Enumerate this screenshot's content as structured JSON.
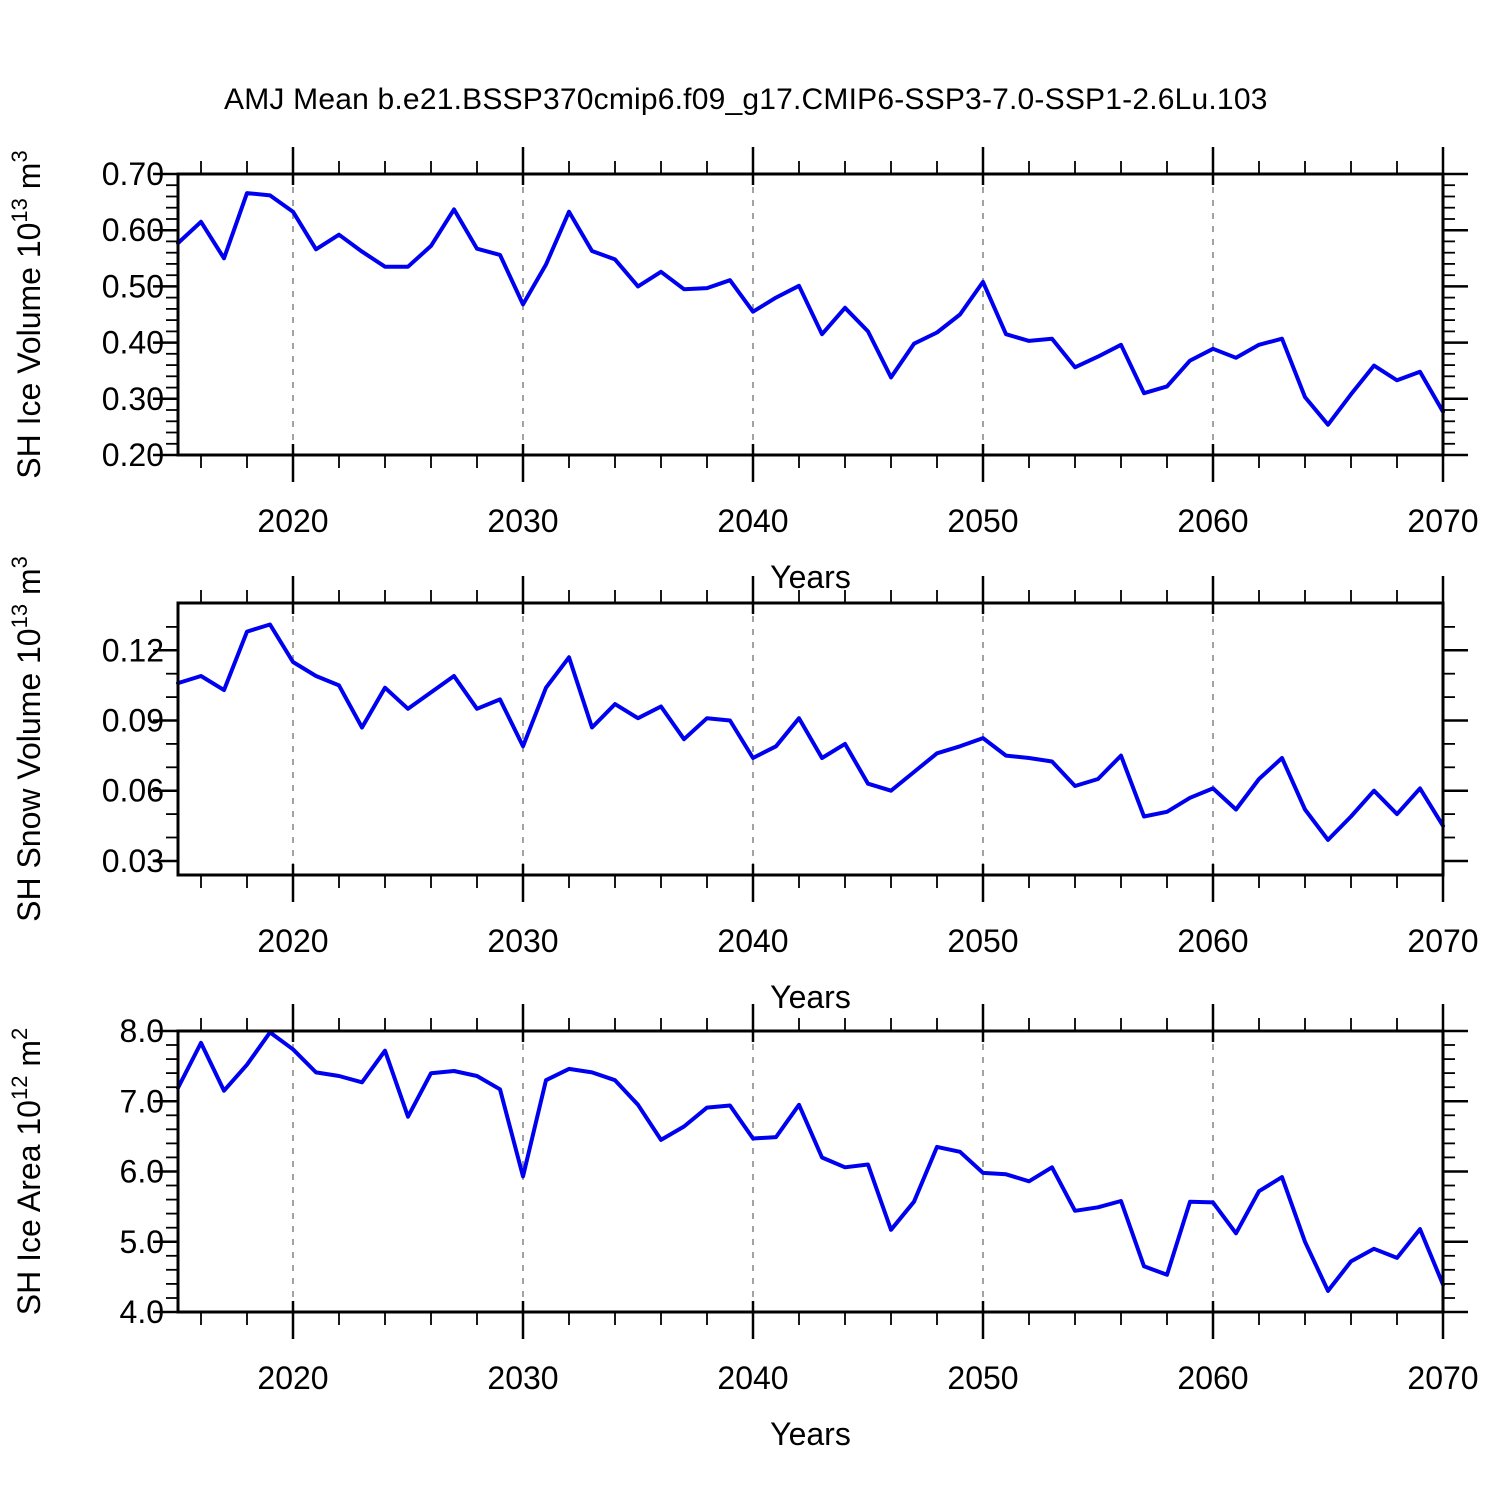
{
  "title": "AMJ Mean b.e21.BSSP370cmip6.f09_g17.CMIP6-SSP3-7.0-SSP1-2.6Lu.103",
  "colors": {
    "line": "#0000f0",
    "grid": "#999999",
    "axis": "#000000",
    "text": "#000000",
    "background": "#ffffff"
  },
  "x_axis": {
    "label": "Years",
    "range": [
      2015,
      2070
    ],
    "ticks": [
      2020,
      2030,
      2040,
      2050,
      2060,
      2070
    ],
    "tick_labels": [
      "2020",
      "2030",
      "2040",
      "2050",
      "2060",
      "2070"
    ],
    "gridlines": [
      2020,
      2030,
      2040,
      2050,
      2060
    ],
    "minor_step": 2
  },
  "years": [
    2015,
    2016,
    2017,
    2018,
    2019,
    2020,
    2021,
    2022,
    2023,
    2024,
    2025,
    2026,
    2027,
    2028,
    2029,
    2030,
    2031,
    2032,
    2033,
    2034,
    2035,
    2036,
    2037,
    2038,
    2039,
    2040,
    2041,
    2042,
    2043,
    2044,
    2045,
    2046,
    2047,
    2048,
    2049,
    2050,
    2051,
    2052,
    2053,
    2054,
    2055,
    2056,
    2057,
    2058,
    2059,
    2060,
    2061,
    2062,
    2063,
    2064,
    2065,
    2066,
    2067,
    2068,
    2069,
    2070
  ],
  "chart_data": [
    {
      "type": "line",
      "name": "sh-ice-volume",
      "ylabel": "SH Ice Volume 10¹³ m³",
      "ylabel_parts": [
        {
          "t": "SH Ice Volume 10"
        },
        {
          "t": "13",
          "sup": true
        },
        {
          "t": " m"
        },
        {
          "t": "3",
          "sup": true
        }
      ],
      "ylim": [
        0.2,
        0.7
      ],
      "yticks": [
        0.7,
        0.6,
        0.5,
        0.4,
        0.3,
        0.2
      ],
      "ytick_labels": [
        "0.70",
        "0.60",
        "0.50",
        "0.40",
        "0.30",
        "0.20"
      ],
      "yminor_step": 0.02,
      "values": [
        0.577,
        0.615,
        0.55,
        0.666,
        0.662,
        0.633,
        0.566,
        0.592,
        0.562,
        0.535,
        0.535,
        0.572,
        0.637,
        0.567,
        0.556,
        0.468,
        0.539,
        0.633,
        0.563,
        0.548,
        0.5,
        0.526,
        0.495,
        0.497,
        0.511,
        0.455,
        0.48,
        0.501,
        0.415,
        0.462,
        0.42,
        0.338,
        0.398,
        0.418,
        0.45,
        0.508,
        0.415,
        0.403,
        0.407,
        0.356,
        0.375,
        0.396,
        0.31,
        0.322,
        0.368,
        0.389,
        0.373,
        0.396,
        0.407,
        0.303,
        0.254,
        0.308,
        0.359,
        0.333,
        0.348,
        0.277
      ]
    },
    {
      "type": "line",
      "name": "sh-snow-volume",
      "ylabel": "SH Snow Volume 10¹³ m³",
      "ylabel_parts": [
        {
          "t": "SH Snow Volume 10"
        },
        {
          "t": "13",
          "sup": true
        },
        {
          "t": " m"
        },
        {
          "t": "3",
          "sup": true
        }
      ],
      "ylim": [
        0.024,
        0.1402
      ],
      "yticks": [
        0.12,
        0.09,
        0.06,
        0.03
      ],
      "ytick_labels": [
        "0.12",
        "0.09",
        "0.06",
        "0.03"
      ],
      "yminor_step": 0.01,
      "values": [
        0.106,
        0.109,
        0.103,
        0.128,
        0.131,
        0.115,
        0.109,
        0.105,
        0.087,
        0.104,
        0.095,
        0.102,
        0.109,
        0.095,
        0.099,
        0.079,
        0.104,
        0.117,
        0.087,
        0.097,
        0.091,
        0.096,
        0.082,
        0.091,
        0.09,
        0.074,
        0.079,
        0.091,
        0.074,
        0.08,
        0.063,
        0.06,
        0.068,
        0.076,
        0.079,
        0.0825,
        0.075,
        0.074,
        0.0725,
        0.062,
        0.065,
        0.075,
        0.049,
        0.051,
        0.057,
        0.061,
        0.052,
        0.065,
        0.074,
        0.052,
        0.039,
        0.049,
        0.06,
        0.05,
        0.061,
        0.045
      ]
    },
    {
      "type": "line",
      "name": "sh-ice-area",
      "ylabel": "SH Ice Area 10¹² m²",
      "ylabel_parts": [
        {
          "t": "SH Ice Area 10"
        },
        {
          "t": "12",
          "sup": true
        },
        {
          "t": " m"
        },
        {
          "t": "2",
          "sup": true
        }
      ],
      "ylim": [
        4.0,
        8.0
      ],
      "yticks": [
        8.0,
        7.0,
        6.0,
        5.0,
        4.0
      ],
      "ytick_labels": [
        "8.0",
        "7.0",
        "6.0",
        "5.0",
        "4.0"
      ],
      "yminor_step": 0.2,
      "values": [
        7.19,
        7.83,
        7.15,
        7.52,
        7.98,
        7.74,
        7.41,
        7.36,
        7.27,
        7.72,
        6.78,
        7.4,
        7.43,
        7.36,
        7.17,
        5.93,
        7.3,
        7.46,
        7.41,
        7.3,
        6.95,
        6.45,
        6.64,
        6.91,
        6.94,
        6.47,
        6.49,
        6.95,
        6.2,
        6.06,
        6.1,
        5.17,
        5.57,
        6.35,
        6.28,
        5.98,
        5.96,
        5.86,
        6.06,
        5.44,
        5.49,
        5.58,
        4.65,
        4.53,
        5.57,
        5.56,
        5.12,
        5.72,
        5.92,
        5.0,
        4.3,
        4.72,
        4.9,
        4.77,
        5.18,
        4.39
      ]
    }
  ]
}
